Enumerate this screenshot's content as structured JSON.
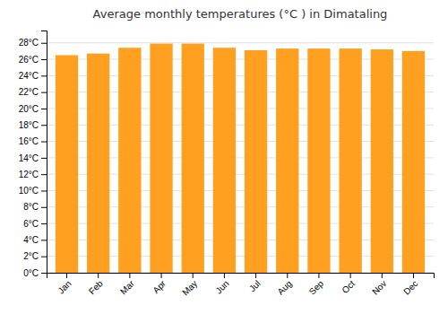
{
  "chart_data": {
    "type": "bar",
    "title": "Average monthly temperatures (°C ) in Dimataling",
    "categories": [
      "Jan",
      "Feb",
      "Mar",
      "Apr",
      "May",
      "Jun",
      "Jul",
      "Aug",
      "Sep",
      "Oct",
      "Nov",
      "Dec"
    ],
    "values": [
      26.5,
      26.7,
      27.4,
      27.9,
      27.9,
      27.4,
      27.1,
      27.3,
      27.3,
      27.3,
      27.2,
      27.0
    ],
    "color": "#FFA020",
    "ylim": [
      0,
      29.5
    ],
    "yticks": [
      {
        "value": 0,
        "label": "0°C"
      },
      {
        "value": 2,
        "label": "2°C"
      },
      {
        "value": 4,
        "label": "4°C"
      },
      {
        "value": 6,
        "label": "6°C"
      },
      {
        "value": 8,
        "label": "8°C"
      },
      {
        "value": 10,
        "label": "10°C"
      },
      {
        "value": 12,
        "label": "12°C"
      },
      {
        "value": 14,
        "label": "14°C"
      },
      {
        "value": 16,
        "label": "16°C"
      },
      {
        "value": 18,
        "label": "18°C"
      },
      {
        "value": 20,
        "label": "20°C"
      },
      {
        "value": 22,
        "label": "22°C"
      },
      {
        "value": 24,
        "label": "24°C"
      },
      {
        "value": 26,
        "label": "26°C"
      },
      {
        "value": 28,
        "label": "28°C"
      }
    ],
    "grid": true
  }
}
